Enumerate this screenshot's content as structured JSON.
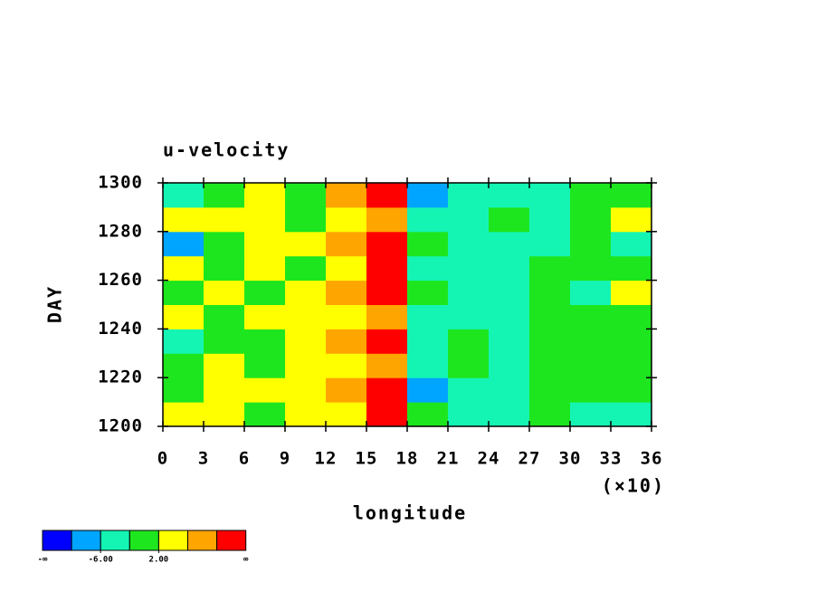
{
  "chart_data": {
    "type": "contour",
    "title": "u-velocity",
    "x_label": "longitude",
    "y_label": "DAY",
    "x_multiplier": "(×10)",
    "x": [
      1.5,
      4.5,
      7.5,
      10.5,
      13.5,
      16.5,
      19.5,
      22.5,
      25.5,
      28.5,
      31.5,
      34.5
    ],
    "y": [
      1205,
      1215,
      1225,
      1235,
      1245,
      1255,
      1265,
      1275,
      1285,
      1295
    ],
    "z": [
      [
        2,
        3,
        0,
        3,
        5,
        12,
        1,
        -3,
        -4,
        0,
        -3,
        -6
      ],
      [
        1,
        4,
        2,
        3,
        6,
        11,
        -7,
        -5,
        -3,
        -2,
        -1,
        -1
      ],
      [
        0,
        3,
        -1,
        4,
        5,
        8,
        -3,
        -2,
        -3,
        0,
        -2,
        1
      ],
      [
        -3,
        1,
        0,
        3,
        7,
        11,
        -4,
        -2,
        -3,
        -1,
        -1,
        0
      ],
      [
        2,
        0,
        3,
        4,
        5,
        9,
        -3,
        -5,
        -3,
        -2,
        0,
        -1
      ],
      [
        -1,
        3,
        1,
        2,
        6,
        12,
        -2,
        -3,
        -4,
        -1,
        -3,
        3
      ],
      [
        3,
        1,
        3,
        1,
        4,
        11,
        -3,
        -4,
        -3,
        -2,
        -1,
        -2
      ],
      [
        -7,
        0,
        2,
        4,
        7,
        12,
        1,
        -5,
        -4,
        -3,
        -2,
        -5
      ],
      [
        2,
        4,
        3,
        1,
        5,
        9,
        -4,
        -3,
        -2,
        -5,
        0,
        3
      ],
      [
        -3,
        0,
        4,
        1,
        6,
        11,
        -7,
        -5,
        -6,
        -3,
        -1,
        1
      ]
    ],
    "xlim": [
      0,
      36
    ],
    "ylim": [
      1200,
      1300
    ],
    "xticks": [
      0,
      3,
      6,
      9,
      12,
      15,
      18,
      21,
      24,
      27,
      30,
      33,
      36
    ],
    "yticks": [
      1200,
      1220,
      1240,
      1260,
      1280,
      1300
    ],
    "colorbar": {
      "levels": [
        -10,
        -6,
        -2,
        2,
        6,
        10
      ],
      "colors": [
        "#0000ff",
        "#00a5ff",
        "#14f5b4",
        "#1ee61e",
        "#ffff00",
        "#ffa500",
        "#ff0000"
      ],
      "low_label": "-∞",
      "high_label": "∞",
      "ticks": [
        {
          "value": -6,
          "label": "-6.00"
        },
        {
          "value": 2,
          "label": "2.00"
        }
      ]
    }
  }
}
